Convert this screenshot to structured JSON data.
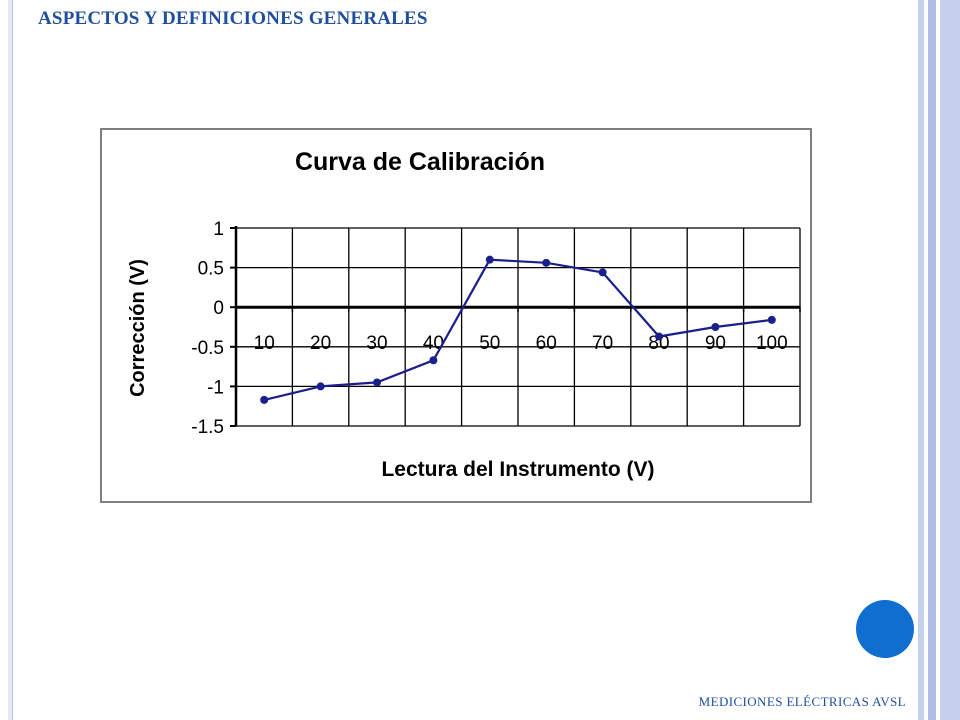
{
  "slide": {
    "title": "ASPECTOS Y DEFINICIONES GENERALES",
    "footer": "MEDICIONES ELÉCTRICAS AVSL"
  },
  "colors": {
    "title": "#1f4e9c",
    "accent_dot": "#0f6fd1",
    "series": "#1a1f8c",
    "grid": "#000000"
  },
  "chart_data": {
    "type": "line",
    "title": "Curva de Calibración",
    "xlabel": "Lectura del Instrumento (V)",
    "ylabel": "Corrección (V)",
    "categories": [
      "10",
      "20",
      "30",
      "40",
      "50",
      "60",
      "70",
      "80",
      "90",
      "100"
    ],
    "series": [
      {
        "values": [
          -1.17,
          -1.0,
          -0.95,
          -0.67,
          0.6,
          0.56,
          0.44,
          -0.37,
          -0.25,
          -0.16
        ]
      }
    ],
    "ylim": [
      -1.5,
      1
    ],
    "yticks": [
      -1.5,
      -1,
      -0.5,
      0,
      0.5,
      1
    ],
    "ytick_labels": [
      "-1.5",
      "-1",
      "-0.5",
      "0",
      "0.5",
      "1"
    ],
    "grid": true,
    "legend": "none"
  }
}
